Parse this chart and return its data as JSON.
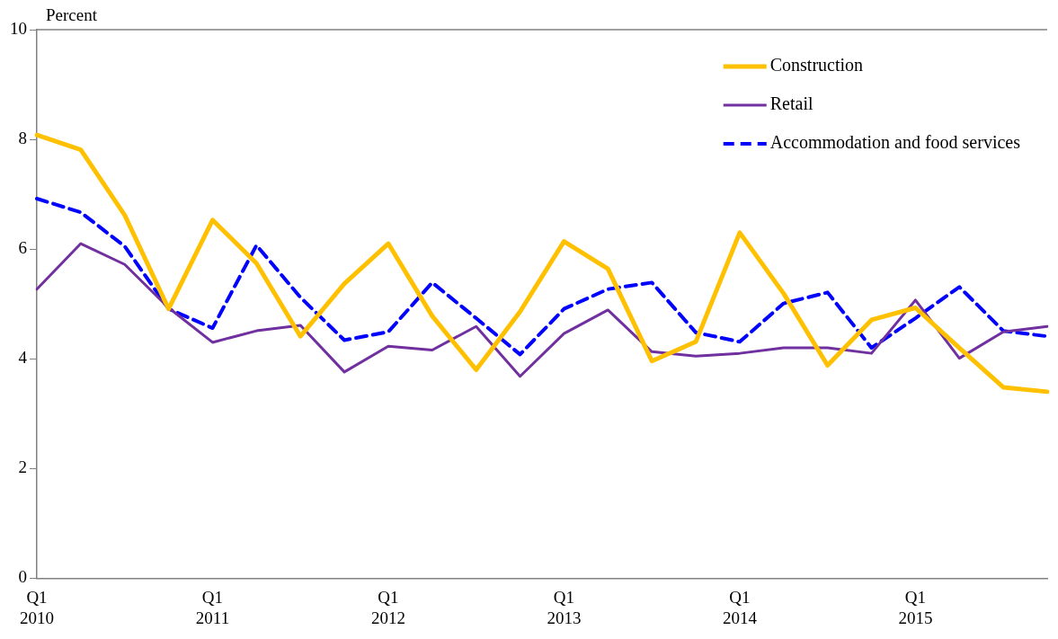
{
  "chart_data": {
    "type": "line",
    "ylabel": "Percent",
    "categories": [
      "Q1\n2010",
      null,
      null,
      null,
      "Q1\n2011",
      null,
      null,
      null,
      "Q1\n2012",
      null,
      null,
      null,
      "Q1\n2013",
      null,
      null,
      null,
      "Q1\n2014",
      null,
      null,
      null,
      "Q1\n2015",
      null,
      null,
      null
    ],
    "series": [
      {
        "name": "Construction",
        "color": "#ffc000",
        "line_style": "solid",
        "values": [
          8.08,
          7.81,
          6.62,
          4.91,
          6.53,
          5.74,
          4.41,
          5.37,
          6.1,
          4.78,
          3.8,
          4.86,
          6.14,
          5.64,
          3.96,
          4.31,
          6.3,
          5.19,
          3.88,
          4.71,
          4.93,
          4.2,
          3.48,
          3.4
        ]
      },
      {
        "name": "Retail",
        "color": "#7030a0",
        "line_style": "solid",
        "values": [
          5.27,
          6.1,
          5.72,
          4.93,
          4.3,
          4.51,
          4.61,
          3.76,
          4.23,
          4.16,
          4.59,
          3.68,
          4.46,
          4.89,
          4.13,
          4.05,
          4.1,
          4.2,
          4.2,
          4.1,
          5.07,
          4.01,
          4.49,
          4.59
        ]
      },
      {
        "name": "Accommodation and food services",
        "color": "#0000ff",
        "line_style": "dashed",
        "values": [
          6.92,
          6.67,
          6.05,
          4.91,
          4.56,
          6.07,
          5.12,
          4.34,
          4.49,
          5.39,
          4.74,
          4.08,
          4.91,
          5.27,
          5.39,
          4.48,
          4.31,
          5.01,
          5.21,
          4.2,
          4.74,
          5.31,
          4.51,
          4.41
        ]
      }
    ],
    "ylim": [
      0,
      10
    ],
    "yticks": [
      0,
      2,
      4,
      6,
      8,
      10
    ],
    "grid": false,
    "legend": "top right",
    "marker": "none"
  }
}
